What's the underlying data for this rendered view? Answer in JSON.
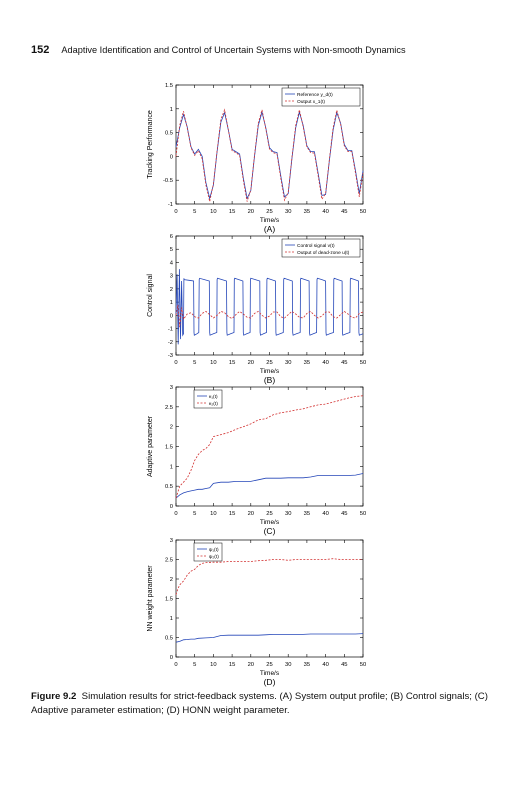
{
  "header": {
    "page_number": "152",
    "running_title": "Adaptive Identification and Control of Uncertain Systems with Non-smooth Dynamics"
  },
  "caption": {
    "label": "Figure 9.2",
    "text": "Simulation results for strict-feedback systems. (A) System output profile; (B) Control signals; (C) Adaptive parameter estimation; (D) HONN weight parameter."
  },
  "colors": {
    "blue": "#2446b8",
    "red": "#d23030"
  },
  "chart_data": [
    {
      "type": "line",
      "panel": "(A)",
      "xlabel": "Time/s",
      "ylabel": "Tracking Performance",
      "xlim": [
        0,
        50
      ],
      "ylim": [
        -1,
        1.5
      ],
      "xticks": [
        "0",
        "5",
        "10",
        "15",
        "20",
        "25",
        "30",
        "35",
        "40",
        "45",
        "50"
      ],
      "yticks": [
        "-1",
        "-0.5",
        "0",
        "0.5",
        "1",
        "1.5"
      ],
      "legend_position": "top-right",
      "series": [
        {
          "name": "Reference y_d(t)",
          "color": "blue",
          "dash": false,
          "x": [
            0,
            1,
            2,
            3,
            4,
            5,
            6,
            7,
            8,
            9,
            10,
            11,
            12,
            13,
            14,
            15,
            16,
            17,
            18,
            19,
            20,
            21,
            22,
            23,
            24,
            25,
            26,
            27,
            28,
            29,
            30,
            31,
            32,
            33,
            34,
            35,
            36,
            37,
            38,
            39,
            40,
            41,
            42,
            43,
            44,
            45,
            46,
            47,
            48,
            49,
            50
          ],
          "y": [
            0.2,
            0.6,
            0.88,
            0.62,
            0.2,
            0.05,
            0.15,
            0.0,
            -0.55,
            -0.88,
            -0.6,
            0.1,
            0.72,
            0.92,
            0.55,
            0.15,
            0.1,
            0.05,
            -0.45,
            -0.88,
            -0.72,
            0.0,
            0.65,
            0.93,
            0.6,
            0.18,
            0.1,
            0.08,
            -0.4,
            -0.85,
            -0.78,
            -0.05,
            0.6,
            0.93,
            0.65,
            0.22,
            0.1,
            0.1,
            -0.35,
            -0.82,
            -0.8,
            -0.1,
            0.55,
            0.92,
            0.7,
            0.25,
            0.12,
            0.12,
            -0.3,
            -0.78,
            -0.3
          ]
        },
        {
          "name": "Output x_1(t)",
          "color": "red",
          "dash": true,
          "x": [
            0,
            1,
            2,
            3,
            4,
            5,
            6,
            7,
            8,
            9,
            10,
            11,
            12,
            13,
            14,
            15,
            16,
            17,
            18,
            19,
            20,
            21,
            22,
            23,
            24,
            25,
            26,
            27,
            28,
            29,
            30,
            31,
            32,
            33,
            34,
            35,
            36,
            37,
            38,
            39,
            40,
            41,
            42,
            43,
            44,
            45,
            46,
            47,
            48,
            49,
            50
          ],
          "y": [
            0.0,
            0.65,
            0.95,
            0.6,
            0.18,
            0.02,
            0.12,
            -0.05,
            -0.6,
            -0.95,
            -0.58,
            0.12,
            0.78,
            0.98,
            0.55,
            0.12,
            0.08,
            0.02,
            -0.5,
            -0.95,
            -0.7,
            0.02,
            0.7,
            0.98,
            0.58,
            0.15,
            0.08,
            0.05,
            -0.45,
            -0.92,
            -0.76,
            -0.03,
            0.65,
            0.98,
            0.62,
            0.2,
            0.08,
            0.07,
            -0.4,
            -0.9,
            -0.78,
            -0.08,
            0.6,
            0.97,
            0.68,
            0.22,
            0.1,
            0.1,
            -0.35,
            -0.85,
            -0.35
          ]
        }
      ]
    },
    {
      "type": "line",
      "panel": "(B)",
      "xlabel": "Time/s",
      "ylabel": "Control signal",
      "xlim": [
        0,
        50
      ],
      "ylim": [
        -3,
        6
      ],
      "xticks": [
        "0",
        "5",
        "10",
        "15",
        "20",
        "25",
        "30",
        "35",
        "40",
        "45",
        "50"
      ],
      "yticks": [
        "-3",
        "-2",
        "-1",
        "0",
        "1",
        "2",
        "3",
        "4",
        "5",
        "6"
      ],
      "legend_position": "top-right",
      "series": [
        {
          "name": "Control signal v(t)",
          "color": "blue",
          "dash": false,
          "x": [
            0,
            0.3,
            0.6,
            0.9,
            1.2,
            1.5,
            1.8,
            2.0,
            2.1,
            2.2,
            3.5,
            4.7,
            4.8,
            4.9,
            5.6,
            6.1,
            6.2,
            6.3,
            7.6,
            8.9,
            9.0,
            9.1,
            10.0,
            10.9,
            11.0,
            11.1,
            12.3,
            13.5,
            13.6,
            13.7,
            14.6,
            15.5,
            15.6,
            15.7,
            16.8,
            17.9,
            18.0,
            18.1,
            18.9,
            19.8,
            19.9,
            20.0,
            21.2,
            22.4,
            22.5,
            22.6,
            23.4,
            24.2,
            24.3,
            24.4,
            25.5,
            26.6,
            26.7,
            26.8,
            27.8,
            28.7,
            28.8,
            28.9,
            30.0,
            31.1,
            31.2,
            31.3,
            32.2,
            33.2,
            33.3,
            33.4,
            34.5,
            35.6,
            35.7,
            35.8,
            36.7,
            37.6,
            37.7,
            37.8,
            39.0,
            40.0,
            40.1,
            40.2,
            41.1,
            42.1,
            42.2,
            42.3,
            43.3,
            44.4,
            44.5,
            44.6,
            45.5,
            46.5,
            46.6,
            46.7,
            47.8,
            48.8,
            48.9,
            49.0,
            50.0
          ],
          "y": [
            0,
            3.1,
            -2.2,
            3.5,
            -1.8,
            2.6,
            -1.5,
            -1.4,
            2.8,
            2.7,
            2.65,
            2.6,
            -1.3,
            -1.5,
            -1.4,
            -1.3,
            2.7,
            2.8,
            2.7,
            2.6,
            -1.3,
            -1.5,
            -1.4,
            -1.3,
            2.7,
            2.8,
            2.7,
            2.6,
            -1.3,
            -1.5,
            -1.4,
            -1.3,
            2.7,
            2.8,
            2.7,
            2.6,
            -1.3,
            -1.5,
            -1.4,
            -1.3,
            2.7,
            2.8,
            2.7,
            2.6,
            -1.3,
            -1.5,
            -1.4,
            -1.3,
            2.7,
            2.8,
            2.7,
            2.6,
            -1.3,
            -1.5,
            -1.4,
            -1.3,
            2.7,
            2.8,
            2.7,
            2.6,
            -1.3,
            -1.5,
            -1.4,
            -1.3,
            2.7,
            2.8,
            2.7,
            2.6,
            -1.3,
            -1.5,
            -1.4,
            -1.3,
            2.7,
            2.8,
            2.7,
            2.6,
            -1.3,
            -1.5,
            -1.4,
            -1.3,
            2.7,
            2.8,
            2.7,
            2.6,
            -1.3,
            -1.5,
            -1.4,
            -1.3,
            2.7,
            2.8,
            2.7,
            2.6,
            -1.3,
            -1.5,
            -1.4
          ]
        },
        {
          "name": "Output of dead-zone u(t)",
          "color": "red",
          "dash": true,
          "x": [
            0,
            0.5,
            1.0,
            1.5,
            2.0,
            3,
            4,
            5,
            6,
            7,
            8,
            9,
            10,
            11,
            12,
            13,
            14,
            15,
            16,
            17,
            18,
            19,
            20,
            21,
            22,
            23,
            24,
            25,
            26,
            27,
            28,
            29,
            30,
            31,
            32,
            33,
            34,
            35,
            36,
            37,
            38,
            39,
            40,
            41,
            42,
            43,
            44,
            45,
            46,
            47,
            48,
            49,
            50
          ],
          "y": [
            0,
            0.8,
            -0.9,
            0.6,
            -0.3,
            0.1,
            0.2,
            -0.1,
            -0.2,
            0.15,
            0.3,
            0.05,
            -0.2,
            0.0,
            0.3,
            0.2,
            -0.1,
            -0.25,
            0.05,
            0.3,
            0.1,
            -0.15,
            -0.2,
            0.15,
            0.3,
            0.0,
            -0.2,
            -0.05,
            0.25,
            0.25,
            -0.1,
            -0.2,
            0.05,
            0.3,
            0.1,
            -0.15,
            -0.2,
            0.15,
            0.3,
            0.0,
            -0.2,
            -0.05,
            0.25,
            0.25,
            -0.1,
            -0.2,
            0.05,
            0.3,
            0.1,
            -0.15,
            -0.2,
            0.15,
            0.25
          ]
        }
      ]
    },
    {
      "type": "line",
      "panel": "(C)",
      "xlabel": "Time/s",
      "ylabel": "Adaptive parameter",
      "xlim": [
        0,
        50
      ],
      "ylim": [
        0,
        3
      ],
      "xticks": [
        "0",
        "5",
        "10",
        "15",
        "20",
        "25",
        "30",
        "35",
        "40",
        "45",
        "50"
      ],
      "yticks": [
        "0",
        "0.5",
        "1",
        "1.5",
        "2",
        "2.5",
        "3"
      ],
      "legend_position": "top-left",
      "series": [
        {
          "name": "κ₁(t)",
          "color": "blue",
          "dash": false,
          "x": [
            0,
            1,
            2,
            3,
            4,
            5,
            6,
            7,
            8,
            9,
            10,
            12,
            14,
            16,
            18,
            20,
            22,
            24,
            26,
            28,
            30,
            32,
            34,
            36,
            38,
            40,
            42,
            44,
            46,
            48,
            50
          ],
          "y": [
            0.2,
            0.28,
            0.33,
            0.36,
            0.38,
            0.4,
            0.42,
            0.42,
            0.44,
            0.46,
            0.57,
            0.6,
            0.6,
            0.62,
            0.62,
            0.62,
            0.66,
            0.7,
            0.7,
            0.7,
            0.71,
            0.71,
            0.71,
            0.73,
            0.77,
            0.77,
            0.77,
            0.77,
            0.77,
            0.78,
            0.82
          ]
        },
        {
          "name": "κ₂(t)",
          "color": "red",
          "dash": true,
          "x": [
            0,
            1,
            2,
            3,
            4,
            5,
            6,
            7,
            8,
            9,
            10,
            12,
            14,
            16,
            18,
            20,
            22,
            24,
            26,
            28,
            30,
            32,
            34,
            36,
            38,
            40,
            42,
            44,
            46,
            48,
            50
          ],
          "y": [
            0.2,
            0.5,
            0.6,
            0.7,
            0.9,
            1.15,
            1.3,
            1.4,
            1.45,
            1.55,
            1.75,
            1.8,
            1.85,
            1.93,
            2.0,
            2.07,
            2.17,
            2.2,
            2.3,
            2.35,
            2.38,
            2.42,
            2.45,
            2.5,
            2.55,
            2.57,
            2.62,
            2.67,
            2.72,
            2.76,
            2.78
          ]
        }
      ]
    },
    {
      "type": "line",
      "panel": "(D)",
      "xlabel": "Time/s",
      "ylabel": "NN weight parameter",
      "xlim": [
        0,
        50
      ],
      "ylim": [
        0,
        3
      ],
      "xticks": [
        "0",
        "5",
        "10",
        "15",
        "20",
        "25",
        "30",
        "35",
        "40",
        "45",
        "50"
      ],
      "yticks": [
        "0",
        "0.5",
        "1",
        "1.5",
        "2",
        "2.5",
        "3"
      ],
      "legend_position": "top-left",
      "series": [
        {
          "name": "ψ₁(t)",
          "color": "blue",
          "dash": false,
          "x": [
            0,
            1,
            2,
            3,
            4,
            5,
            6,
            8,
            10,
            12,
            14,
            16,
            18,
            20,
            22,
            24,
            26,
            28,
            30,
            32,
            34,
            36,
            38,
            40,
            42,
            44,
            46,
            48,
            50
          ],
          "y": [
            0.38,
            0.4,
            0.44,
            0.45,
            0.46,
            0.46,
            0.48,
            0.49,
            0.5,
            0.55,
            0.56,
            0.56,
            0.56,
            0.56,
            0.56,
            0.57,
            0.58,
            0.58,
            0.58,
            0.58,
            0.58,
            0.59,
            0.59,
            0.59,
            0.59,
            0.59,
            0.59,
            0.59,
            0.6
          ]
        },
        {
          "name": "ψ₂(t)",
          "color": "red",
          "dash": true,
          "x": [
            0,
            0.5,
            1,
            2,
            3,
            4,
            5,
            6,
            7,
            8,
            10,
            12,
            14,
            16,
            18,
            20,
            22,
            24,
            26,
            28,
            30,
            32,
            34,
            36,
            38,
            40,
            42,
            44,
            46,
            48,
            50
          ],
          "y": [
            1.6,
            1.75,
            1.85,
            1.95,
            2.1,
            2.2,
            2.25,
            2.35,
            2.4,
            2.42,
            2.43,
            2.43,
            2.45,
            2.45,
            2.45,
            2.45,
            2.47,
            2.48,
            2.5,
            2.5,
            2.48,
            2.5,
            2.5,
            2.5,
            2.5,
            2.5,
            2.52,
            2.5,
            2.5,
            2.5,
            2.5
          ]
        }
      ]
    }
  ]
}
